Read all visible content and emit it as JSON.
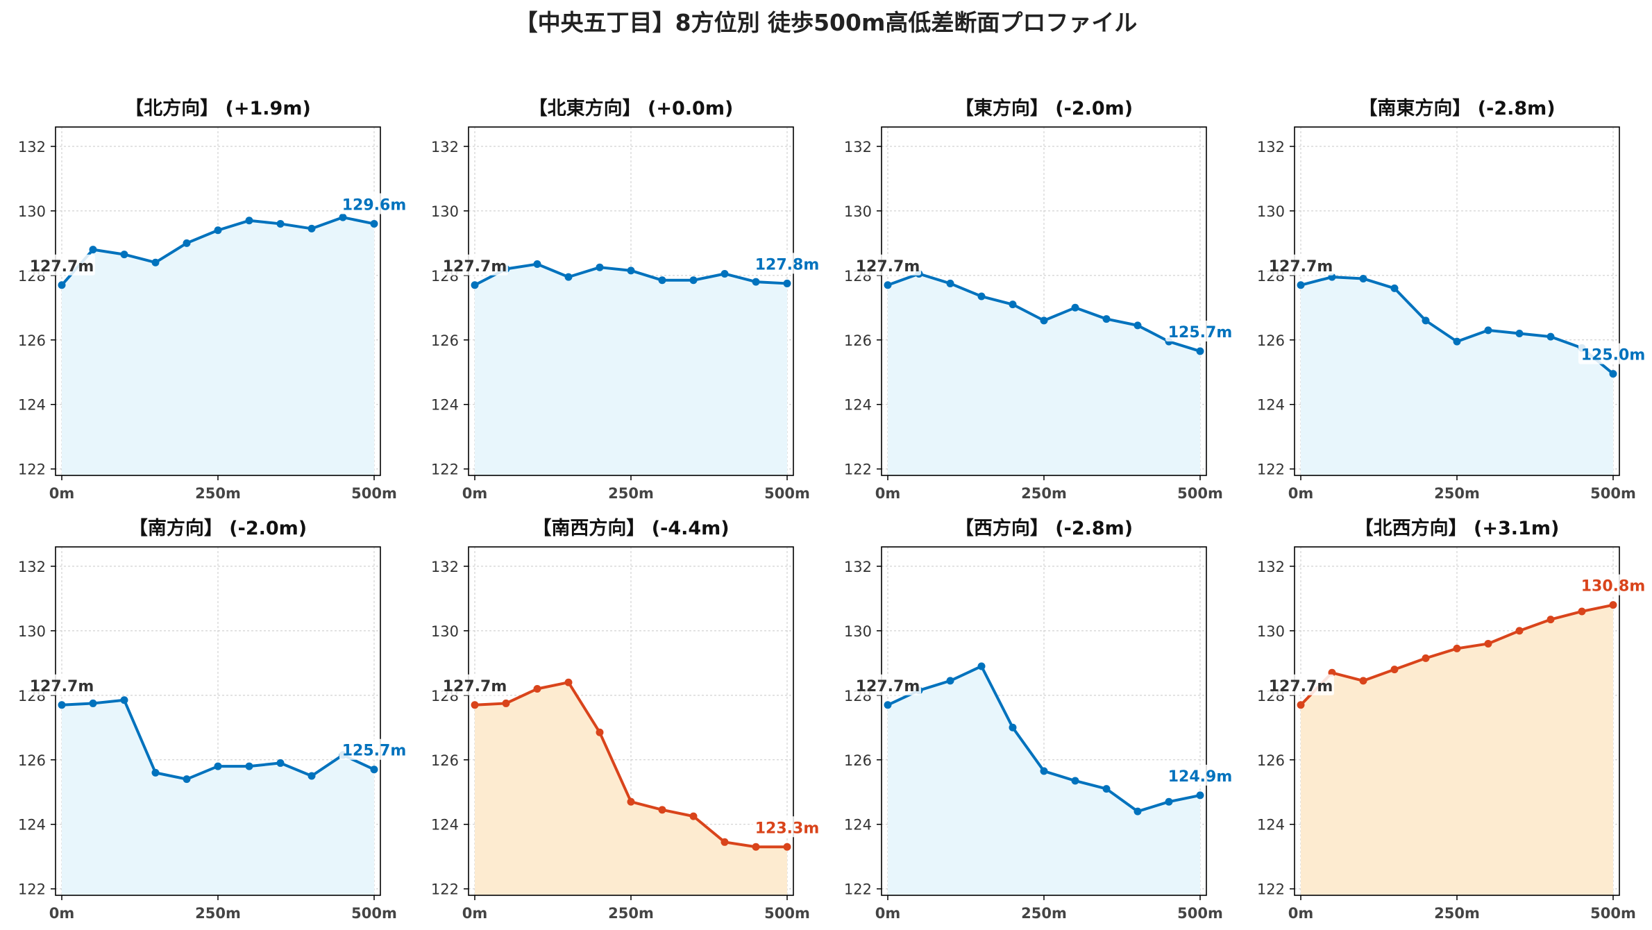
{
  "title": "【中央五丁目】8方位別 徒歩500m高低差断面プロファイル",
  "colors": {
    "rise_line": "#0072bd",
    "rise_fill": "#e8f6fc",
    "fall_line": "#d9441b",
    "fall_fill": "#fdebd0",
    "start_label": "#333333",
    "grid": "#c8c8c8"
  },
  "chart_data": [
    {
      "type": "area",
      "title": "【北方向】 (+1.9m)",
      "x_tick_labels": [
        "0m",
        "250m",
        "500m"
      ],
      "x_ticks": [
        0,
        250,
        500
      ],
      "y_ticks": [
        122,
        124,
        126,
        128,
        130,
        132
      ],
      "xlim": [
        -10,
        510
      ],
      "ylim": [
        121.8,
        132.6
      ],
      "grid": true,
      "color_scheme": "rise",
      "x": [
        0,
        50,
        100,
        150,
        200,
        250,
        300,
        350,
        400,
        450,
        500
      ],
      "y": [
        127.7,
        128.8,
        128.65,
        128.4,
        129.0,
        129.4,
        129.7,
        129.6,
        129.45,
        129.8,
        129.6
      ],
      "start_label": "127.7m",
      "end_label": "129.6m"
    },
    {
      "type": "area",
      "title": "【北東方向】 (+0.0m)",
      "x_tick_labels": [
        "0m",
        "250m",
        "500m"
      ],
      "x_ticks": [
        0,
        250,
        500
      ],
      "y_ticks": [
        122,
        124,
        126,
        128,
        130,
        132
      ],
      "xlim": [
        -10,
        510
      ],
      "ylim": [
        121.8,
        132.6
      ],
      "grid": true,
      "color_scheme": "rise",
      "x": [
        0,
        50,
        100,
        150,
        200,
        250,
        300,
        350,
        400,
        450,
        500
      ],
      "y": [
        127.7,
        128.2,
        128.35,
        127.95,
        128.25,
        128.15,
        127.85,
        127.85,
        128.05,
        127.8,
        127.75
      ],
      "start_label": "127.7m",
      "end_label": "127.8m"
    },
    {
      "type": "area",
      "title": "【東方向】 (-2.0m)",
      "x_tick_labels": [
        "0m",
        "250m",
        "500m"
      ],
      "x_ticks": [
        0,
        250,
        500
      ],
      "y_ticks": [
        122,
        124,
        126,
        128,
        130,
        132
      ],
      "xlim": [
        -10,
        510
      ],
      "ylim": [
        121.8,
        132.6
      ],
      "grid": true,
      "color_scheme": "rise",
      "x": [
        0,
        50,
        100,
        150,
        200,
        250,
        300,
        350,
        400,
        450,
        500
      ],
      "y": [
        127.7,
        128.05,
        127.75,
        127.35,
        127.1,
        126.6,
        127.0,
        126.65,
        126.45,
        125.95,
        125.65
      ],
      "start_label": "127.7m",
      "end_label": "125.7m"
    },
    {
      "type": "area",
      "title": "【南東方向】 (-2.8m)",
      "x_tick_labels": [
        "0m",
        "250m",
        "500m"
      ],
      "x_ticks": [
        0,
        250,
        500
      ],
      "y_ticks": [
        122,
        124,
        126,
        128,
        130,
        132
      ],
      "xlim": [
        -10,
        510
      ],
      "ylim": [
        121.8,
        132.6
      ],
      "grid": true,
      "color_scheme": "rise",
      "x": [
        0,
        50,
        100,
        150,
        200,
        250,
        300,
        350,
        400,
        450,
        500
      ],
      "y": [
        127.7,
        127.95,
        127.9,
        127.6,
        126.6,
        125.95,
        126.3,
        126.2,
        126.1,
        125.75,
        124.95
      ],
      "start_label": "127.7m",
      "end_label": "125.0m"
    },
    {
      "type": "area",
      "title": "【南方向】 (-2.0m)",
      "x_tick_labels": [
        "0m",
        "250m",
        "500m"
      ],
      "x_ticks": [
        0,
        250,
        500
      ],
      "y_ticks": [
        122,
        124,
        126,
        128,
        130,
        132
      ],
      "xlim": [
        -10,
        510
      ],
      "ylim": [
        121.8,
        132.6
      ],
      "grid": true,
      "color_scheme": "rise",
      "x": [
        0,
        50,
        100,
        150,
        200,
        250,
        300,
        350,
        400,
        450,
        500
      ],
      "y": [
        127.7,
        127.75,
        127.85,
        125.6,
        125.4,
        125.8,
        125.8,
        125.9,
        125.5,
        126.15,
        125.7
      ],
      "start_label": "127.7m",
      "end_label": "125.7m"
    },
    {
      "type": "area",
      "title": "【南西方向】 (-4.4m)",
      "x_tick_labels": [
        "0m",
        "250m",
        "500m"
      ],
      "x_ticks": [
        0,
        250,
        500
      ],
      "y_ticks": [
        122,
        124,
        126,
        128,
        130,
        132
      ],
      "xlim": [
        -10,
        510
      ],
      "ylim": [
        121.8,
        132.6
      ],
      "grid": true,
      "color_scheme": "fall",
      "x": [
        0,
        50,
        100,
        150,
        200,
        250,
        300,
        350,
        400,
        450,
        500
      ],
      "y": [
        127.7,
        127.75,
        128.2,
        128.4,
        126.85,
        124.7,
        124.45,
        124.25,
        123.45,
        123.3,
        123.3
      ],
      "start_label": "127.7m",
      "end_label": "123.3m"
    },
    {
      "type": "area",
      "title": "【西方向】 (-2.8m)",
      "x_tick_labels": [
        "0m",
        "250m",
        "500m"
      ],
      "x_ticks": [
        0,
        250,
        500
      ],
      "y_ticks": [
        122,
        124,
        126,
        128,
        130,
        132
      ],
      "xlim": [
        -10,
        510
      ],
      "ylim": [
        121.8,
        132.6
      ],
      "grid": true,
      "color_scheme": "rise",
      "x": [
        0,
        50,
        100,
        150,
        200,
        250,
        300,
        350,
        400,
        450,
        500
      ],
      "y": [
        127.7,
        128.15,
        128.45,
        128.9,
        127.0,
        125.65,
        125.35,
        125.1,
        124.4,
        124.7,
        124.9
      ],
      "start_label": "127.7m",
      "end_label": "124.9m"
    },
    {
      "type": "area",
      "title": "【北西方向】 (+3.1m)",
      "x_tick_labels": [
        "0m",
        "250m",
        "500m"
      ],
      "x_ticks": [
        0,
        250,
        500
      ],
      "y_ticks": [
        122,
        124,
        126,
        128,
        130,
        132
      ],
      "xlim": [
        -10,
        510
      ],
      "ylim": [
        121.8,
        132.6
      ],
      "grid": true,
      "color_scheme": "fall",
      "x": [
        0,
        50,
        100,
        150,
        200,
        250,
        300,
        350,
        400,
        450,
        500
      ],
      "y": [
        127.7,
        128.7,
        128.45,
        128.8,
        129.15,
        129.45,
        129.6,
        130.0,
        130.35,
        130.6,
        130.8
      ],
      "start_label": "127.7m",
      "end_label": "130.8m"
    }
  ]
}
